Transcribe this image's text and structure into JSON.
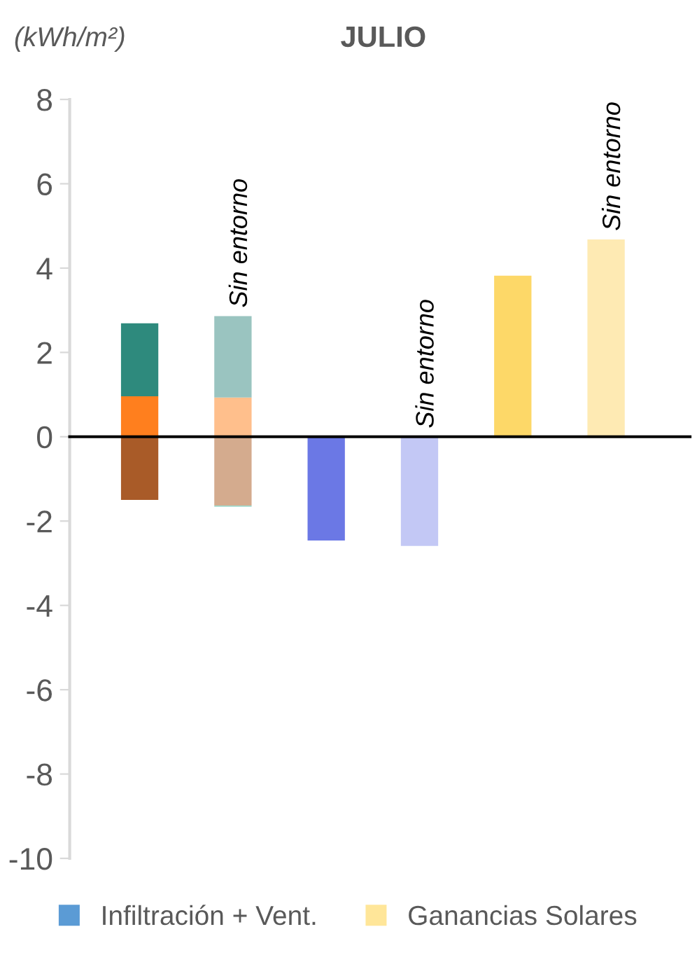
{
  "chart_data": {
    "type": "bar",
    "title": "JULIO",
    "ylabel": "(kWh/m²)",
    "stacked": true,
    "categories": [
      null,
      null,
      null,
      null,
      null,
      null
    ],
    "series": [
      {
        "colors": [
          "#a95b28",
          "#d4ab8e",
          "#6b78e5",
          "#c3c8f5",
          "#ffffff",
          "#ffffff"
        ],
        "values": [
          -1.5,
          -1.63,
          -2.46,
          -2.59,
          null,
          null
        ],
        "value_labels": [
          null,
          null,
          null,
          "Sin entorno",
          null,
          null
        ]
      },
      {
        "colors": [
          "#9fd8c8",
          "#9fd8c8",
          "#9fd8c8",
          "#9fd8c8",
          "#9fd8c8",
          "#9fd8c8"
        ],
        "values": [
          null,
          -0.03,
          null,
          null,
          null,
          null
        ]
      },
      {
        "colors": [
          "#ff7f1e",
          "#ffbf8c",
          "#ffffff",
          "#ffffff",
          "#fdd868",
          "#feeab3"
        ],
        "values": [
          0.96,
          0.93,
          null,
          null,
          3.82,
          4.68
        ],
        "value_labels": [
          null,
          null,
          null,
          null,
          null,
          "Sin entorno"
        ]
      },
      {
        "colors": [
          "#2e8a7d",
          "#9ac4c0",
          "#ffffff",
          "#ffffff",
          "#ffffff",
          "#ffffff"
        ],
        "values": [
          1.73,
          1.93,
          null,
          null,
          null,
          null
        ],
        "value_labels": [
          null,
          "Sin entorno",
          null,
          null,
          null,
          null
        ]
      },
      {
        "name": "Infiltración + Vent.",
        "color": "#5b9bd5",
        "values": [
          null,
          null,
          null,
          null,
          null,
          null
        ]
      },
      {
        "name": "Ganancias Solares",
        "color": "#ffe699",
        "values": [
          null,
          null,
          null,
          null,
          null,
          null
        ]
      }
    ],
    "ylim": [
      -10,
      8
    ],
    "yticks": [
      -10,
      -8,
      -6,
      -4,
      -2,
      0,
      2,
      4,
      6,
      8
    ],
    "legend": "bottom"
  }
}
